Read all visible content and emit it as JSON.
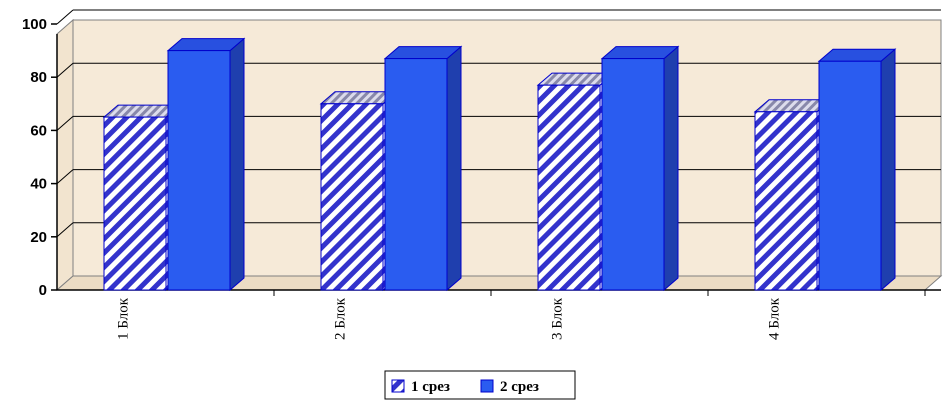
{
  "chart_data": {
    "type": "bar",
    "categories": [
      "1 Блок",
      "2 Блок",
      "3 Блок",
      "4 Блок"
    ],
    "series": [
      {
        "name": "1 срез",
        "values": [
          65,
          70,
          77,
          67
        ]
      },
      {
        "name": "2 срез",
        "values": [
          90,
          87,
          87,
          86
        ]
      }
    ],
    "ylim": [
      0,
      100
    ],
    "yticks": [
      0,
      20,
      40,
      60,
      80,
      100
    ],
    "grid": true,
    "legend": "bottom-center",
    "colors": {
      "series1_stripe": "#3333cc",
      "series1_base": "#ffffff",
      "series2_front": "#2a5cf0",
      "series2_side": "#1f3fae",
      "series2_top": "#2850e0",
      "bar_stroke": "#0000cc",
      "wall": "#f6ead8",
      "floor": "#ecdcc4"
    }
  }
}
